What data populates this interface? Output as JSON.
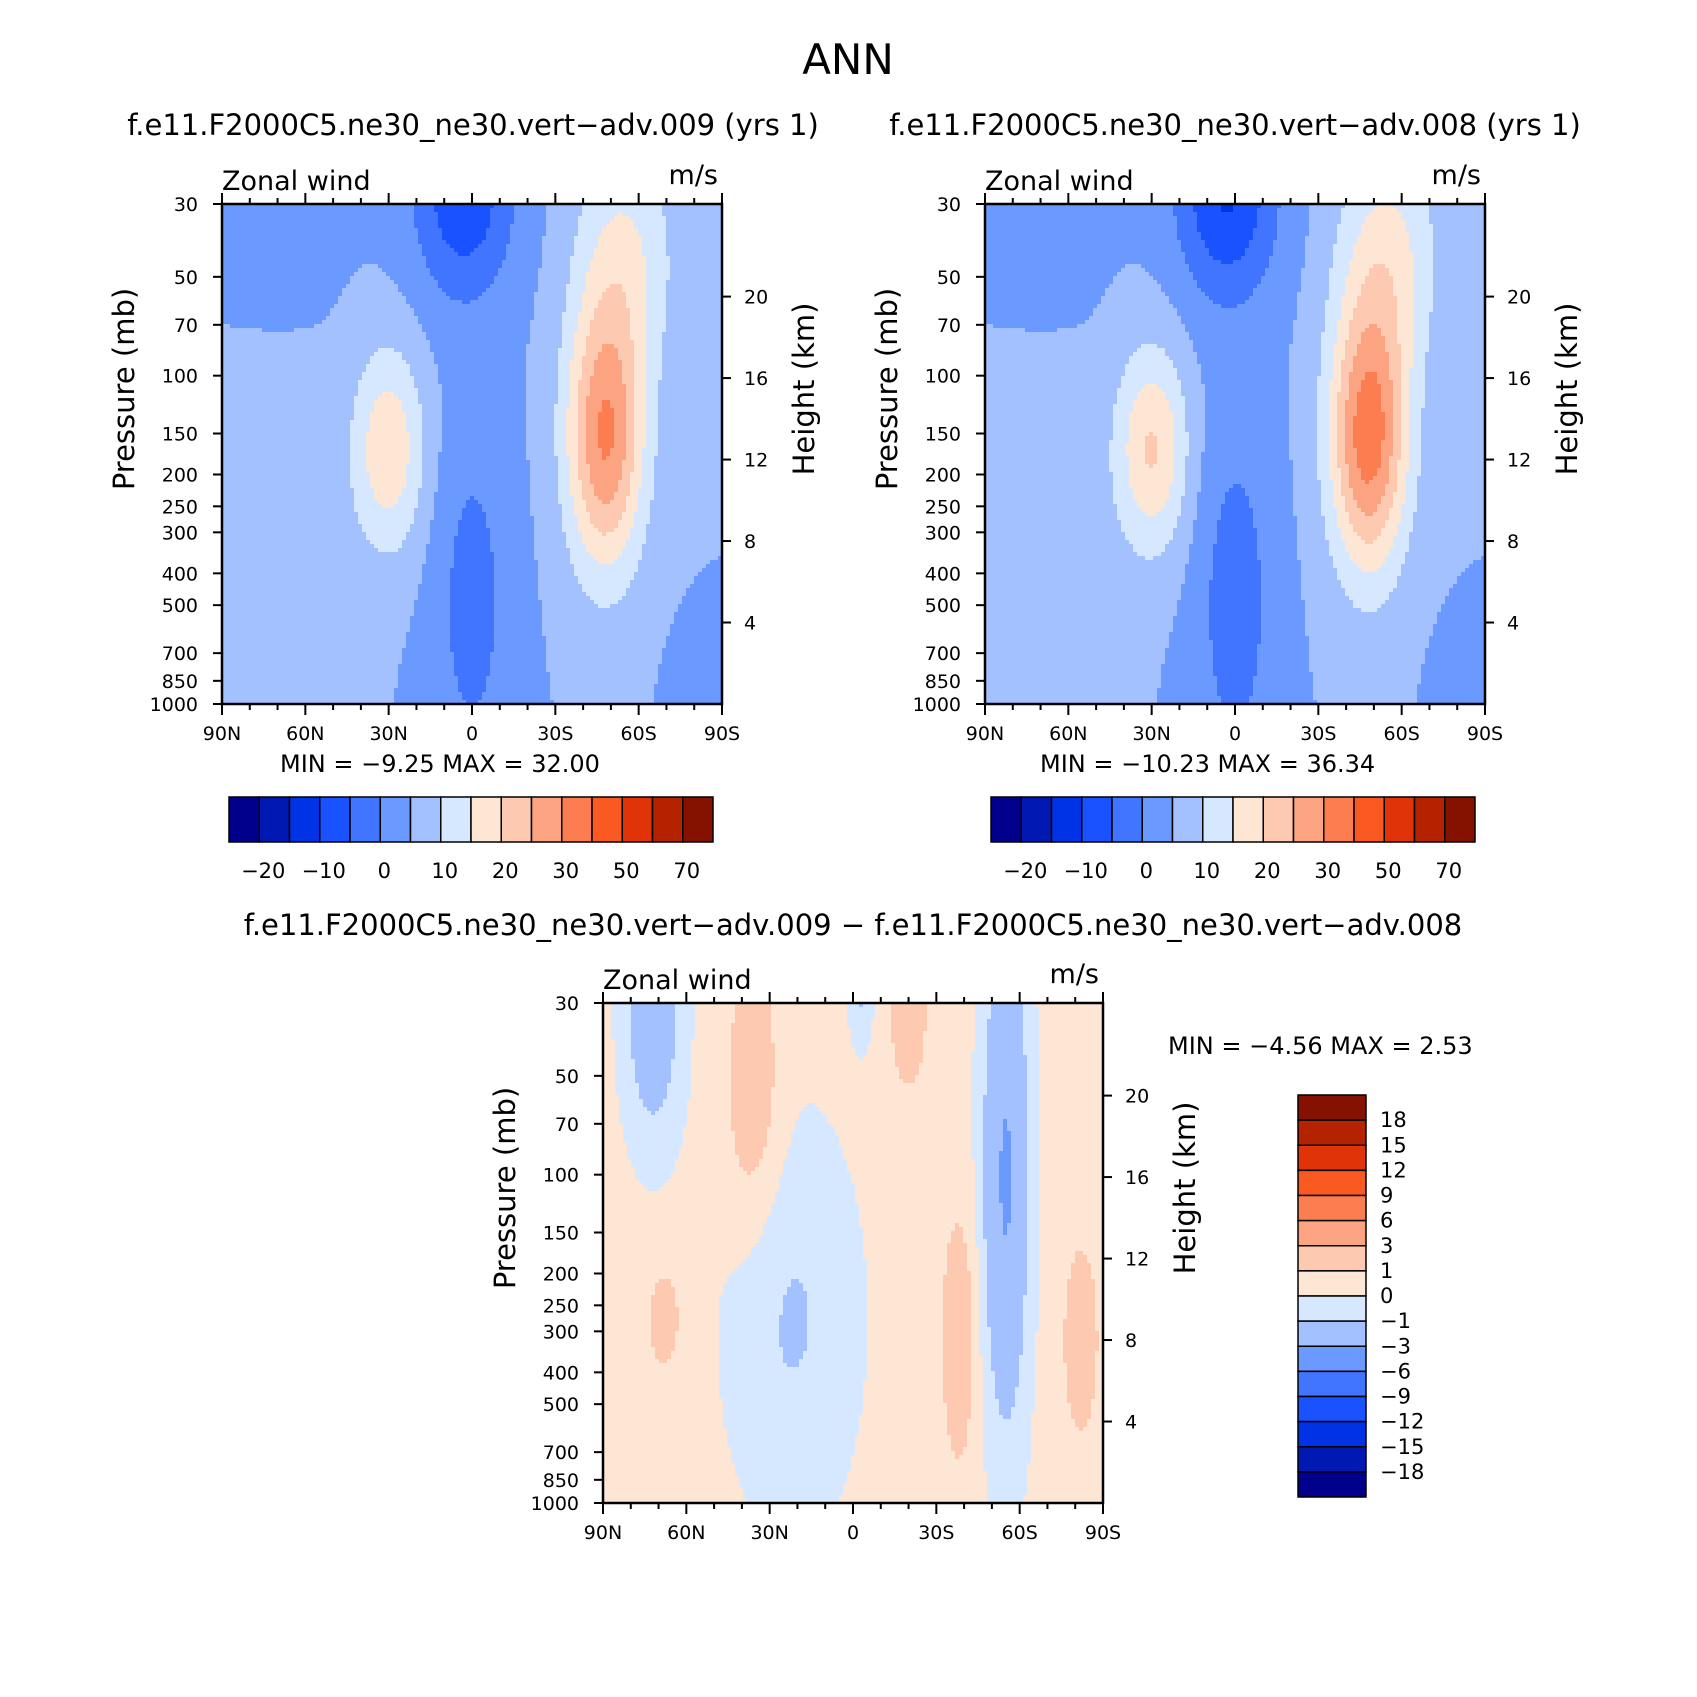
{
  "figure_title": "ANN",
  "colors": {
    "main_scale": [
      "#00008c",
      "#0019b2",
      "#0033e5",
      "#1a52ff",
      "#4275ff",
      "#6a99ff",
      "#a4c1ff",
      "#d6e8ff",
      "#fee6d5",
      "#fdc9b1",
      "#fca481",
      "#fc7e50",
      "#fa5a22",
      "#e03307",
      "#b52200",
      "#851200"
    ],
    "diff_scale": [
      "#00008c",
      "#0019b2",
      "#0033e5",
      "#1a52ff",
      "#4275ff",
      "#6a99ff",
      "#a4c1ff",
      "#d6e8ff",
      "#fee6d5",
      "#fdc9b1",
      "#fca481",
      "#fc7e50",
      "#fa5a22",
      "#e03307",
      "#b52200",
      "#851200"
    ]
  },
  "chart_data": [
    {
      "type": "heatmap",
      "title": "f.e11.F2000C5.ne30_ne30.vert−adv.009 (yrs 1)",
      "left_label": "Zonal wind",
      "right_label": "m/s",
      "xlabel": "",
      "ylabel": "Pressure (mb)",
      "y2label": "Height (km)",
      "x_ticks": [
        "90N",
        "60N",
        "30N",
        "0",
        "30S",
        "60S",
        "90S"
      ],
      "y_ticks": [
        "30",
        "50",
        "70",
        "100",
        "150",
        "200",
        "250",
        "300",
        "400",
        "500",
        "700",
        "850",
        "1000"
      ],
      "y2_ticks": [
        "20",
        "16",
        "12",
        "8",
        "4"
      ],
      "xlim": [
        90,
        -90
      ],
      "ylim": [
        1000,
        30
      ],
      "y_scale": "log",
      "stats": {
        "min_label": "MIN =",
        "min": "−9.25",
        "max_label": "MAX =",
        "max": "32.00"
      },
      "colorbar_labels": [
        "−20",
        "−10",
        "0",
        "10",
        "20",
        "30",
        "50",
        "70"
      ],
      "field": "model_009"
    },
    {
      "type": "heatmap",
      "title": "f.e11.F2000C5.ne30_ne30.vert−adv.008 (yrs 1)",
      "left_label": "Zonal wind",
      "right_label": "m/s",
      "xlabel": "",
      "ylabel": "Pressure (mb)",
      "y2label": "Height (km)",
      "x_ticks": [
        "90N",
        "60N",
        "30N",
        "0",
        "30S",
        "60S",
        "90S"
      ],
      "y_ticks": [
        "30",
        "50",
        "70",
        "100",
        "150",
        "200",
        "250",
        "300",
        "400",
        "500",
        "700",
        "850",
        "1000"
      ],
      "y2_ticks": [
        "20",
        "16",
        "12",
        "8",
        "4"
      ],
      "xlim": [
        90,
        -90
      ],
      "ylim": [
        1000,
        30
      ],
      "y_scale": "log",
      "stats": {
        "min_label": "MIN =",
        "min": "−10.23",
        "max_label": "MAX =",
        "max": "36.34"
      },
      "colorbar_labels": [
        "−20",
        "−10",
        "0",
        "10",
        "20",
        "30",
        "50",
        "70"
      ],
      "field": "model_008"
    },
    {
      "type": "heatmap",
      "title": "f.e11.F2000C5.ne30_ne30.vert−adv.009 − f.e11.F2000C5.ne30_ne30.vert−adv.008",
      "left_label": "Zonal wind",
      "right_label": "m/s",
      "xlabel": "",
      "ylabel": "Pressure (mb)",
      "y2label": "Height (km)",
      "x_ticks": [
        "90N",
        "60N",
        "30N",
        "0",
        "30S",
        "60S",
        "90S"
      ],
      "y_ticks": [
        "30",
        "50",
        "70",
        "100",
        "150",
        "200",
        "250",
        "300",
        "400",
        "500",
        "700",
        "850",
        "1000"
      ],
      "y2_ticks": [
        "20",
        "16",
        "12",
        "8",
        "4"
      ],
      "xlim": [
        90,
        -90
      ],
      "ylim": [
        1000,
        30
      ],
      "y_scale": "log",
      "stats": {
        "min_label": "MIN =",
        "min": "−4.56",
        "max_label": "MAX =",
        "max": "2.53"
      },
      "colorbar_labels": [
        "18",
        "15",
        "12",
        "9",
        "6",
        "3",
        "1",
        "0",
        "−1",
        "−3",
        "−6",
        "−9",
        "−12",
        "−15",
        "−18"
      ],
      "field": "difference"
    }
  ]
}
